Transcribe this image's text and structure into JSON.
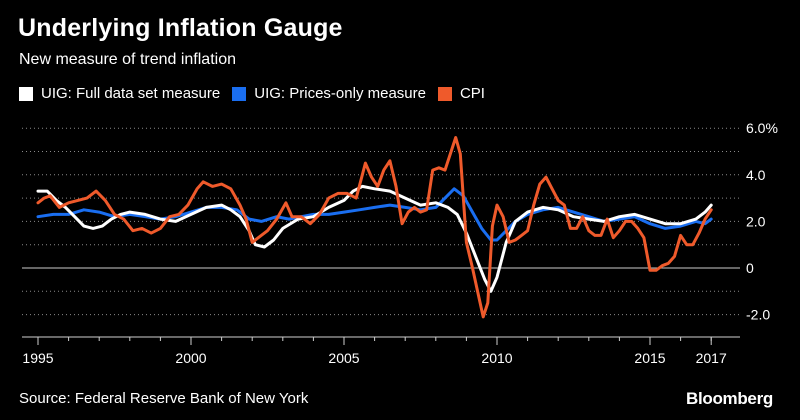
{
  "header": {
    "title": "Underlying Inflation Gauge",
    "subtitle": "New measure of trend inflation"
  },
  "footer": {
    "source": "Source: Federal Reserve Bank of New York",
    "brand": "Bloomberg"
  },
  "colors": {
    "background": "#000000",
    "uig_full": "#ffffff",
    "uig_prices": "#1a6ef0",
    "cpi": "#ef5a2b",
    "grid": "#8a8a8a",
    "zero_line": "#cccccc"
  },
  "chart_data": {
    "type": "line",
    "title": "Underlying Inflation Gauge",
    "subtitle": "New measure of trend inflation",
    "xlabel": "",
    "ylabel": "",
    "xlim": [
      1995,
      2017.3
    ],
    "ylim": [
      -2.5,
      6.5
    ],
    "x_ticks": [
      1995,
      2000,
      2005,
      2010,
      2015,
      2017
    ],
    "x_tick_labels": [
      "1995",
      "2000",
      "2005",
      "2010",
      "2015",
      "2017"
    ],
    "y_ticks": [
      6,
      4,
      2,
      0,
      -2
    ],
    "y_tick_labels": [
      "6.0%",
      "4.0",
      "2.0",
      "0",
      "-2.0"
    ],
    "grid": "horizontal dotted",
    "legend_position": "top-left",
    "series": [
      {
        "name": "UIG: Full data set measure",
        "color": "#ffffff",
        "x": [
          1995.0,
          1995.3,
          1995.6,
          1995.9,
          1996.2,
          1996.5,
          1996.8,
          1997.1,
          1997.4,
          1997.7,
          1998.0,
          1998.5,
          1999.0,
          1999.5,
          2000.0,
          2000.5,
          2001.0,
          2001.3,
          2001.6,
          2001.9,
          2002.1,
          2002.4,
          2002.7,
          2003.0,
          2003.5,
          2004.0,
          2004.5,
          2005.0,
          2005.3,
          2005.6,
          2006.0,
          2006.5,
          2007.0,
          2007.5,
          2008.0,
          2008.4,
          2008.7,
          2009.0,
          2009.3,
          2009.6,
          2009.8,
          2010.0,
          2010.3,
          2010.6,
          2011.0,
          2011.5,
          2012.0,
          2012.5,
          2013.0,
          2013.5,
          2014.0,
          2014.5,
          2015.0,
          2015.5,
          2016.0,
          2016.5,
          2016.8,
          2017.0
        ],
        "values": [
          3.3,
          3.3,
          2.9,
          2.6,
          2.2,
          1.8,
          1.7,
          1.8,
          2.1,
          2.3,
          2.4,
          2.3,
          2.1,
          2.0,
          2.3,
          2.6,
          2.7,
          2.5,
          2.2,
          1.6,
          1.0,
          0.9,
          1.2,
          1.7,
          2.1,
          2.2,
          2.6,
          2.9,
          3.3,
          3.5,
          3.4,
          3.3,
          3.0,
          2.7,
          2.8,
          2.6,
          2.3,
          1.5,
          0.5,
          -0.5,
          -1.0,
          -0.4,
          1.1,
          2.0,
          2.4,
          2.6,
          2.5,
          2.2,
          2.1,
          2.0,
          2.2,
          2.3,
          2.1,
          1.9,
          1.9,
          2.1,
          2.4,
          2.7
        ]
      },
      {
        "name": "UIG: Prices-only measure",
        "color": "#1a6ef0",
        "x": [
          1995.0,
          1995.5,
          1996.0,
          1996.5,
          1997.0,
          1997.5,
          1998.0,
          1998.5,
          1999.0,
          1999.5,
          2000.0,
          2000.5,
          2001.0,
          2001.5,
          2001.9,
          2002.3,
          2002.8,
          2003.2,
          2003.6,
          2004.0,
          2004.5,
          2005.0,
          2005.5,
          2006.0,
          2006.5,
          2007.0,
          2007.5,
          2008.0,
          2008.3,
          2008.6,
          2008.9,
          2009.2,
          2009.5,
          2009.8,
          2010.0,
          2010.3,
          2010.6,
          2011.0,
          2011.5,
          2012.0,
          2012.5,
          2013.0,
          2013.5,
          2014.0,
          2014.5,
          2015.0,
          2015.5,
          2016.0,
          2016.5,
          2016.8,
          2017.0
        ],
        "values": [
          2.2,
          2.3,
          2.3,
          2.5,
          2.4,
          2.2,
          2.3,
          2.2,
          2.1,
          2.2,
          2.4,
          2.6,
          2.6,
          2.5,
          2.1,
          2.0,
          2.2,
          2.1,
          2.2,
          2.3,
          2.3,
          2.4,
          2.5,
          2.6,
          2.7,
          2.6,
          2.5,
          2.6,
          3.0,
          3.4,
          3.1,
          2.4,
          1.7,
          1.2,
          1.2,
          1.6,
          2.0,
          2.3,
          2.5,
          2.6,
          2.4,
          2.2,
          2.0,
          2.1,
          2.2,
          1.9,
          1.7,
          1.8,
          2.0,
          1.9,
          2.1
        ]
      },
      {
        "name": "CPI",
        "color": "#ef5a2b",
        "x": [
          1995.0,
          1995.2,
          1995.4,
          1995.7,
          1996.0,
          1996.3,
          1996.6,
          1996.9,
          1997.2,
          1997.5,
          1997.8,
          1998.1,
          1998.4,
          1998.7,
          1999.0,
          1999.3,
          1999.6,
          1999.9,
          2000.2,
          2000.4,
          2000.7,
          2001.0,
          2001.3,
          2001.6,
          2001.8,
          2002.0,
          2002.2,
          2002.5,
          2002.8,
          2003.1,
          2003.3,
          2003.6,
          2003.9,
          2004.2,
          2004.5,
          2004.8,
          2005.1,
          2005.4,
          2005.7,
          2005.9,
          2006.1,
          2006.3,
          2006.5,
          2006.7,
          2006.9,
          2007.1,
          2007.3,
          2007.5,
          2007.7,
          2007.9,
          2008.1,
          2008.3,
          2008.5,
          2008.65,
          2008.8,
          2009.0,
          2009.2,
          2009.4,
          2009.55,
          2009.7,
          2009.85,
          2010.0,
          2010.2,
          2010.4,
          2010.6,
          2010.8,
          2011.0,
          2011.2,
          2011.4,
          2011.6,
          2011.8,
          2012.0,
          2012.2,
          2012.4,
          2012.6,
          2012.8,
          2013.0,
          2013.2,
          2013.4,
          2013.6,
          2013.8,
          2014.0,
          2014.2,
          2014.4,
          2014.6,
          2014.8,
          2015.0,
          2015.2,
          2015.4,
          2015.6,
          2015.8,
          2016.0,
          2016.2,
          2016.4,
          2016.6,
          2016.8,
          2017.0
        ],
        "values": [
          2.8,
          3.0,
          3.1,
          2.6,
          2.8,
          2.9,
          3.0,
          3.3,
          2.9,
          2.3,
          2.1,
          1.6,
          1.7,
          1.5,
          1.7,
          2.2,
          2.3,
          2.7,
          3.4,
          3.7,
          3.5,
          3.6,
          3.4,
          2.7,
          2.1,
          1.1,
          1.3,
          1.6,
          2.1,
          2.8,
          2.2,
          2.2,
          1.9,
          2.3,
          3.0,
          3.2,
          3.2,
          3.0,
          4.5,
          3.9,
          3.5,
          4.2,
          4.6,
          3.5,
          1.9,
          2.4,
          2.6,
          2.4,
          2.5,
          4.2,
          4.3,
          4.2,
          5.0,
          5.6,
          4.9,
          1.1,
          0.0,
          -1.2,
          -2.1,
          -1.5,
          1.8,
          2.7,
          2.2,
          1.1,
          1.2,
          1.4,
          1.6,
          2.7,
          3.6,
          3.9,
          3.4,
          2.9,
          2.7,
          1.7,
          1.7,
          2.2,
          1.6,
          1.4,
          1.4,
          2.1,
          1.3,
          1.6,
          2.0,
          2.0,
          1.7,
          1.3,
          -0.1,
          -0.1,
          0.1,
          0.2,
          0.5,
          1.4,
          1.0,
          1.0,
          1.5,
          2.1,
          2.5
        ]
      }
    ]
  }
}
